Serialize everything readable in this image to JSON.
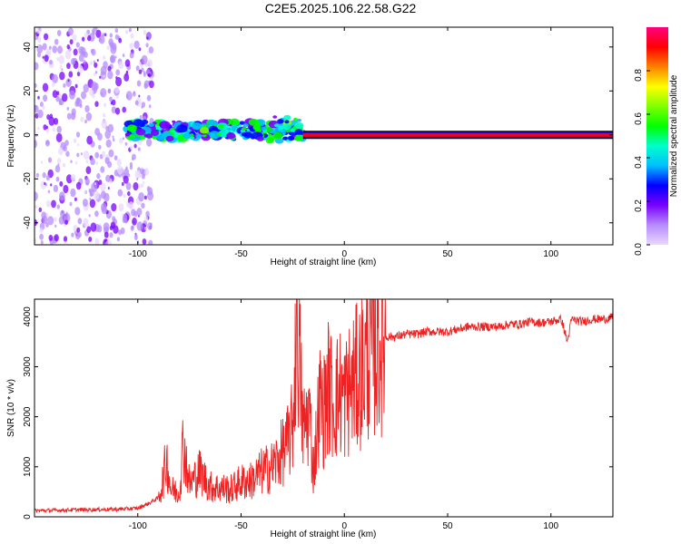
{
  "title": "C2E5.2025.106.22.58.G22",
  "chart_data": [
    {
      "type": "heatmap",
      "xlabel": "Height of straight line (km)",
      "ylabel": "Frequency (Hz)",
      "xlim": [
        -150,
        130
      ],
      "ylim": [
        -50,
        49
      ],
      "xticks": [
        -100,
        -50,
        0,
        50,
        100
      ],
      "yticks": [
        -40,
        -20,
        0,
        20,
        40
      ],
      "colorbar": {
        "label": "Normalized spectral amplitude",
        "range": [
          0,
          1
        ],
        "ticks": [
          "0.0",
          "0.2",
          "0.4",
          "0.6",
          "0.8"
        ],
        "colors": [
          "#e8d8ff",
          "#b68cff",
          "#7a00ff",
          "#0000ff",
          "#00bfff",
          "#00ffcc",
          "#00ff00",
          "#80ff00",
          "#ffff00",
          "#ff8000",
          "#ff0000",
          "#ff0080"
        ]
      },
      "features": [
        {
          "x": [
            -150,
            -105
          ],
          "y": [
            -50,
            49
          ],
          "level": 0.15
        },
        {
          "x": [
            -105,
            -20
          ],
          "y": [
            -2,
            6
          ],
          "level": 0.4
        },
        {
          "x": [
            -20,
            130
          ],
          "y": [
            -0.5,
            0.5
          ],
          "level": 0.95
        }
      ]
    },
    {
      "type": "line",
      "xlabel": "Height of straight line (km)",
      "ylabel": "SNR (10 * v/v)",
      "xlim": [
        -150,
        130
      ],
      "ylim": [
        0,
        4350
      ],
      "xticks": [
        -100,
        -50,
        0,
        50,
        100
      ],
      "yticks": [
        0,
        1000,
        2000,
        3000,
        4000
      ],
      "series": [
        {
          "color": "#ee2222",
          "x": [
            -150,
            -130,
            -110,
            -100,
            -95,
            -90,
            -88,
            -86,
            -84,
            -80,
            -78,
            -75,
            -70,
            -65,
            -60,
            -55,
            -50,
            -45,
            -40,
            -35,
            -32,
            -30,
            -28,
            -25,
            -23,
            -20,
            -17,
            -15,
            -12,
            -10,
            -8,
            -5,
            -2,
            0,
            3,
            5,
            8,
            10,
            12,
            15,
            18,
            20,
            25,
            30,
            35,
            40,
            45,
            50,
            55,
            60,
            65,
            70,
            75,
            80,
            85,
            90,
            95,
            100,
            105,
            108,
            110,
            115,
            120,
            125,
            130
          ],
          "y": [
            120,
            140,
            150,
            170,
            260,
            380,
            700,
            1150,
            550,
            480,
            1500,
            650,
            900,
            600,
            580,
            550,
            700,
            720,
            900,
            1000,
            1150,
            1300,
            1400,
            1800,
            4200,
            1700,
            2100,
            900,
            2300,
            2100,
            2600,
            2300,
            2500,
            2350,
            2600,
            2700,
            2900,
            3100,
            3300,
            3400,
            3500,
            3600,
            3600,
            3650,
            3650,
            3700,
            3700,
            3700,
            3750,
            3800,
            3800,
            3800,
            3800,
            3850,
            3850,
            3900,
            3880,
            3900,
            3950,
            3500,
            3950,
            3900,
            3950,
            3950,
            3980
          ]
        }
      ]
    }
  ]
}
